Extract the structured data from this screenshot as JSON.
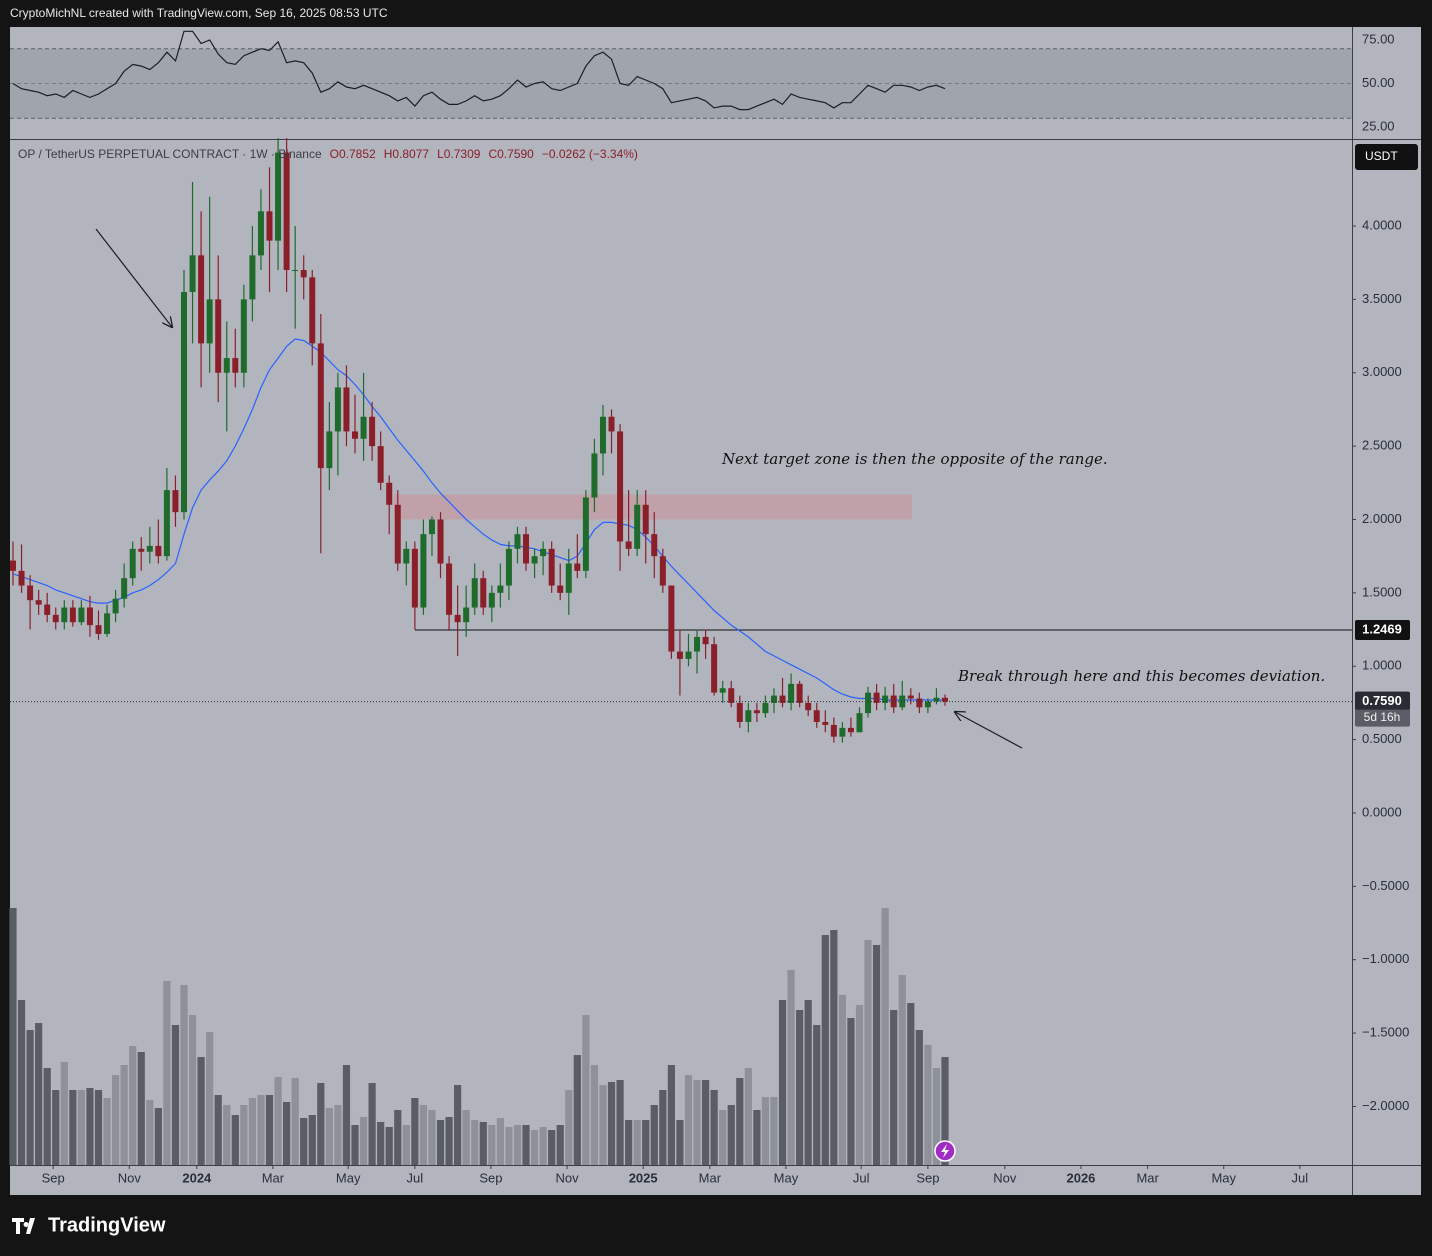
{
  "header": {
    "credit": "CryptoMichNL created with TradingView.com, Sep 16, 2025 08:53 UTC",
    "logo": "TradingView"
  },
  "chart_data": {
    "type": "candlestick",
    "symbol": "OP / TetherUS PERPETUAL CONTRACT · 1W · Binance",
    "ohlc_legend": [
      "O0.7852",
      "H0.8077",
      "L0.7309",
      "C0.7590",
      "−0.0262 (−3.34%)"
    ],
    "currency": "USDT",
    "up_color": "#1f6b2c",
    "down_color": "#8a1f2a",
    "open": [
      1.72,
      1.65,
      1.55,
      1.45,
      1.42,
      1.35,
      1.3,
      1.4,
      1.3,
      1.4,
      1.28,
      1.22,
      1.36,
      1.46,
      1.6,
      1.8,
      1.78,
      1.82,
      1.75,
      2.2,
      2.05,
      3.55,
      3.8,
      3.2,
      3.5,
      3.0,
      3.1,
      3.0,
      3.5,
      3.8,
      4.1,
      3.9,
      4.5,
      3.7,
      3.7,
      3.65,
      3.2,
      2.35,
      2.6,
      2.9,
      2.6,
      2.55,
      2.7,
      2.5,
      2.25,
      2.1,
      1.7,
      1.8,
      1.4,
      1.9,
      2.0,
      1.7,
      1.35,
      1.3,
      1.4,
      1.6,
      1.4,
      1.5,
      1.55,
      1.8,
      1.9,
      1.7,
      1.75,
      1.8,
      1.55,
      1.5,
      1.7,
      1.65,
      2.15,
      2.45,
      2.7,
      2.6,
      1.85,
      1.8,
      2.1,
      1.9,
      1.75,
      1.55,
      1.1,
      1.05,
      1.1,
      1.2,
      1.15,
      0.82,
      0.85,
      0.75,
      0.62,
      0.7,
      0.68,
      0.75,
      0.8,
      0.75,
      0.88,
      0.75,
      0.7,
      0.62,
      0.6,
      0.52,
      0.58,
      0.55,
      0.68,
      0.82,
      0.75,
      0.8,
      0.72,
      0.8,
      0.78,
      0.72,
      0.76,
      0.7852
    ],
    "high": [
      1.85,
      1.83,
      1.62,
      1.52,
      1.5,
      1.4,
      1.45,
      1.45,
      1.45,
      1.48,
      1.38,
      1.42,
      1.52,
      1.7,
      1.85,
      1.88,
      1.95,
      2.0,
      2.35,
      2.3,
      3.7,
      4.3,
      4.1,
      4.2,
      3.8,
      3.35,
      3.3,
      3.6,
      4.0,
      4.25,
      4.4,
      4.6,
      4.6,
      4.0,
      3.8,
      3.7,
      3.4,
      2.8,
      3.0,
      3.05,
      2.85,
      3.0,
      2.8,
      2.6,
      2.3,
      2.2,
      1.85,
      1.85,
      2.0,
      2.02,
      2.05,
      1.75,
      1.55,
      1.55,
      1.7,
      1.65,
      1.55,
      1.7,
      1.85,
      1.95,
      1.95,
      1.8,
      1.85,
      1.85,
      1.7,
      1.8,
      1.9,
      2.2,
      2.55,
      2.78,
      2.75,
      2.65,
      2.2,
      2.2,
      2.2,
      2.05,
      1.8,
      1.55,
      1.25,
      1.22,
      1.25,
      1.25,
      1.2,
      0.9,
      0.9,
      0.8,
      0.75,
      0.75,
      0.8,
      0.85,
      0.92,
      0.95,
      0.9,
      0.8,
      0.75,
      0.7,
      0.65,
      0.62,
      0.65,
      0.72,
      0.86,
      0.88,
      0.86,
      0.88,
      0.9,
      0.85,
      0.82,
      0.78,
      0.85,
      0.8077
    ],
    "low": [
      1.55,
      1.5,
      1.25,
      1.35,
      1.3,
      1.25,
      1.25,
      1.27,
      1.28,
      1.2,
      1.18,
      1.2,
      1.3,
      1.4,
      1.55,
      1.65,
      1.7,
      1.7,
      1.72,
      1.95,
      2.0,
      3.2,
      2.9,
      3.0,
      2.8,
      2.6,
      2.9,
      2.9,
      3.35,
      3.7,
      3.55,
      3.7,
      3.55,
      3.3,
      3.5,
      3.05,
      1.77,
      2.2,
      2.3,
      2.5,
      2.45,
      2.4,
      2.4,
      2.2,
      1.9,
      1.65,
      1.55,
      1.25,
      1.35,
      1.75,
      1.6,
      1.25,
      1.07,
      1.2,
      1.35,
      1.35,
      1.3,
      1.4,
      1.45,
      1.7,
      1.65,
      1.6,
      1.62,
      1.5,
      1.45,
      1.35,
      1.6,
      1.6,
      2.05,
      2.3,
      2.45,
      1.65,
      1.75,
      1.75,
      1.7,
      1.6,
      1.5,
      1.05,
      0.8,
      1.0,
      0.95,
      1.05,
      0.8,
      0.75,
      0.72,
      0.58,
      0.55,
      0.62,
      0.65,
      0.68,
      0.72,
      0.7,
      0.72,
      0.66,
      0.58,
      0.55,
      0.48,
      0.48,
      0.52,
      0.55,
      0.65,
      0.7,
      0.7,
      0.68,
      0.7,
      0.74,
      0.68,
      0.68,
      0.74,
      0.7309
    ],
    "close": [
      1.65,
      1.55,
      1.45,
      1.42,
      1.35,
      1.3,
      1.4,
      1.3,
      1.4,
      1.28,
      1.22,
      1.36,
      1.46,
      1.6,
      1.8,
      1.78,
      1.82,
      1.75,
      2.2,
      2.05,
      3.55,
      3.8,
      3.2,
      3.5,
      3.0,
      3.1,
      3.0,
      3.5,
      3.8,
      4.1,
      3.9,
      4.5,
      3.7,
      3.7,
      3.65,
      3.2,
      2.35,
      2.6,
      2.9,
      2.6,
      2.55,
      2.7,
      2.5,
      2.25,
      2.1,
      1.7,
      1.8,
      1.4,
      1.9,
      2.0,
      1.7,
      1.35,
      1.3,
      1.4,
      1.6,
      1.4,
      1.5,
      1.55,
      1.8,
      1.9,
      1.7,
      1.75,
      1.8,
      1.55,
      1.5,
      1.7,
      1.65,
      2.15,
      2.45,
      2.7,
      2.6,
      1.85,
      1.8,
      2.1,
      1.9,
      1.75,
      1.55,
      1.1,
      1.05,
      1.1,
      1.2,
      1.15,
      0.82,
      0.85,
      0.75,
      0.62,
      0.7,
      0.68,
      0.75,
      0.8,
      0.75,
      0.88,
      0.75,
      0.7,
      0.62,
      0.6,
      0.52,
      0.58,
      0.55,
      0.68,
      0.82,
      0.75,
      0.8,
      0.72,
      0.8,
      0.78,
      0.72,
      0.76,
      0.7852,
      0.759
    ],
    "ma": {
      "color": "#2962ff",
      "values": [
        1.63,
        1.61,
        1.59,
        1.57,
        1.55,
        1.52,
        1.5,
        1.48,
        1.46,
        1.44,
        1.43,
        1.43,
        1.45,
        1.47,
        1.5,
        1.52,
        1.55,
        1.59,
        1.64,
        1.7,
        1.9,
        2.08,
        2.2,
        2.27,
        2.33,
        2.4,
        2.5,
        2.62,
        2.75,
        2.9,
        3.02,
        3.1,
        3.18,
        3.23,
        3.22,
        3.18,
        3.14,
        3.08,
        3.02,
        2.98,
        2.92,
        2.85,
        2.77,
        2.7,
        2.62,
        2.54,
        2.47,
        2.4,
        2.33,
        2.25,
        2.18,
        2.12,
        2.06,
        2.0,
        1.95,
        1.9,
        1.86,
        1.83,
        1.82,
        1.82,
        1.81,
        1.8,
        1.78,
        1.76,
        1.74,
        1.72,
        1.75,
        1.84,
        1.93,
        1.98,
        1.98,
        1.97,
        1.96,
        1.93,
        1.88,
        1.82,
        1.75,
        1.68,
        1.62,
        1.56,
        1.5,
        1.44,
        1.38,
        1.33,
        1.28,
        1.24,
        1.2,
        1.15,
        1.1,
        1.07,
        1.04,
        1.01,
        0.98,
        0.95,
        0.92,
        0.88,
        0.84,
        0.81,
        0.79,
        0.78,
        0.78,
        0.78,
        0.77,
        0.77,
        0.77,
        0.77,
        0.77,
        0.77,
        0.77,
        0.77
      ]
    },
    "volume": {
      "ylim": [
        0,
        300
      ],
      "up_color": "#8e9199",
      "down_color": "#5a5d64",
      "values": [
        257,
        165,
        135,
        142,
        97,
        75,
        103,
        75,
        75,
        77,
        75,
        67,
        90,
        100,
        119,
        113,
        65,
        57,
        184,
        140,
        180,
        150,
        108,
        133,
        70,
        60,
        50,
        60,
        67,
        70,
        70,
        88,
        63,
        87,
        47,
        50,
        82,
        57,
        60,
        100,
        40,
        48,
        82,
        43,
        38,
        55,
        40,
        67,
        60,
        55,
        45,
        48,
        80,
        55,
        45,
        43,
        40,
        47,
        38,
        40,
        40,
        35,
        38,
        35,
        40,
        75,
        110,
        150,
        100,
        80,
        83,
        85,
        45,
        45,
        45,
        60,
        75,
        100,
        45,
        90,
        85,
        85,
        75,
        55,
        60,
        87,
        97,
        55,
        68,
        68,
        165,
        195,
        155,
        165,
        140,
        230,
        235,
        170,
        147,
        160,
        225,
        220,
        257,
        155,
        190,
        162,
        135,
        120,
        97,
        108
      ]
    },
    "rsi": {
      "color": "#1c1e24",
      "ylim": [
        18.1,
        82.5
      ],
      "band": [
        30,
        70
      ],
      "yticks": [
        {
          "value": 25,
          "label": "25.00"
        },
        {
          "value": 50,
          "label": "50.00"
        },
        {
          "value": 75,
          "label": "75.00"
        }
      ],
      "values": [
        50,
        47,
        46,
        45,
        43,
        44,
        42,
        46,
        44,
        42,
        44,
        47,
        50,
        57,
        61,
        60,
        58,
        62,
        68,
        63,
        80,
        80,
        73,
        75,
        67,
        62,
        61,
        66,
        68,
        70,
        69,
        74,
        62,
        63,
        62,
        56,
        45,
        47,
        51,
        48,
        47,
        49,
        47,
        45,
        43,
        40,
        42,
        37,
        43,
        45,
        41,
        38,
        38,
        40,
        43,
        40,
        41,
        43,
        47,
        52,
        48,
        50,
        51,
        47,
        46,
        48,
        50,
        60,
        66,
        68,
        64,
        50,
        49,
        54,
        52,
        50,
        47,
        39,
        40,
        41,
        42,
        40,
        36,
        37,
        37,
        35,
        35,
        37,
        39,
        41,
        38,
        44,
        42,
        41,
        40,
        39,
        36,
        39,
        39,
        44,
        49,
        47,
        45,
        49,
        49,
        48,
        46,
        48,
        49,
        47
      ]
    },
    "ylim": [
      -2.399,
      4.586
    ],
    "yticks": [
      {
        "value": -2,
        "label": "−2.0000"
      },
      {
        "value": -1.5,
        "label": "−1.5000"
      },
      {
        "value": -1,
        "label": "−1.0000"
      },
      {
        "value": -0.5,
        "label": "−0.5000"
      },
      {
        "value": 0,
        "label": "0.0000"
      },
      {
        "value": 0.5,
        "label": "0.5000"
      },
      {
        "value": 1,
        "label": "1.0000"
      },
      {
        "value": 1.5,
        "label": "1.5000"
      },
      {
        "value": 2,
        "label": "2.0000"
      },
      {
        "value": 2.5,
        "label": "2.5000"
      },
      {
        "value": 3,
        "label": "3.0000"
      },
      {
        "value": 3.5,
        "label": "3.5000"
      },
      {
        "value": 4,
        "label": "4.0000"
      }
    ],
    "xlim": [
      -0.35,
      156.6
    ],
    "xticks": [
      {
        "value": 4.7,
        "label": "Sep"
      },
      {
        "value": 13.6,
        "label": "Nov"
      },
      {
        "value": 21.5,
        "label": "2024"
      },
      {
        "value": 30.4,
        "label": "Mar"
      },
      {
        "value": 39.2,
        "label": "May"
      },
      {
        "value": 47.0,
        "label": "Jul"
      },
      {
        "value": 55.9,
        "label": "Sep"
      },
      {
        "value": 64.8,
        "label": "Nov"
      },
      {
        "value": 73.7,
        "label": "2025"
      },
      {
        "value": 81.5,
        "label": "Mar"
      },
      {
        "value": 90.4,
        "label": "May"
      },
      {
        "value": 99.2,
        "label": "Jul"
      },
      {
        "value": 107.0,
        "label": "Sep"
      },
      {
        "value": 116.0,
        "label": "Nov"
      },
      {
        "value": 124.9,
        "label": "2026"
      },
      {
        "value": 132.7,
        "label": "Mar"
      },
      {
        "value": 141.6,
        "label": "May"
      },
      {
        "value": 150.5,
        "label": "Jul"
      }
    ],
    "level_line": 1.2469,
    "zone": {
      "low": 2.0,
      "high": 2.17,
      "color": "#c49aa2"
    },
    "last_price": {
      "value": 0.759,
      "label": "0.7590",
      "countdown": "5d 16h"
    },
    "annotations": [
      "Next target zone is then the opposite of the range.",
      "Break through here and this becomes deviation."
    ]
  }
}
